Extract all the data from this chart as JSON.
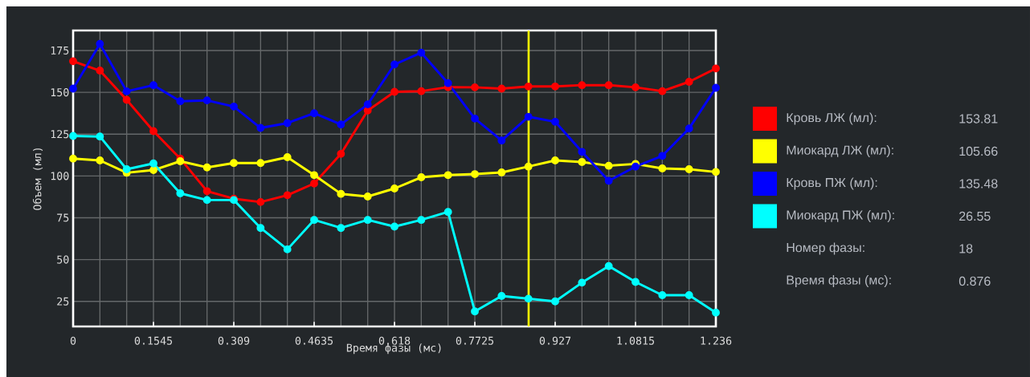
{
  "chart_data": {
    "type": "line",
    "xlabel": "Время фазы (мс)",
    "ylabel": "Объем (мл)",
    "x": [
      0,
      0.0515,
      0.103,
      0.1545,
      0.206,
      0.2575,
      0.309,
      0.3605,
      0.412,
      0.4635,
      0.515,
      0.5665,
      0.618,
      0.6695,
      0.721,
      0.7725,
      0.824,
      0.8755,
      0.927,
      0.9785,
      1.03,
      1.0815,
      1.133,
      1.1845,
      1.236
    ],
    "series": [
      {
        "name": "Кровь ЛЖ (мл):",
        "color": "#ff0000",
        "values": [
          168.6,
          163.0,
          145.5,
          126.8,
          110.4,
          90.9,
          86.4,
          84.4,
          88.5,
          95.5,
          113.2,
          139.1,
          150.3,
          150.7,
          153.1,
          153.0,
          152.2,
          153.5,
          153.5,
          154.3,
          154.3,
          153.0,
          150.7,
          156.3,
          164.3
        ]
      },
      {
        "name": "Миокард ЛЖ (мл):",
        "color": "#ffff00",
        "values": [
          110.4,
          109.3,
          101.9,
          103.5,
          108.8,
          105.1,
          107.7,
          107.7,
          111.2,
          100.5,
          89.3,
          87.7,
          92.5,
          99.2,
          100.5,
          101.1,
          102.1,
          105.6,
          109.3,
          108.3,
          106.1,
          107.2,
          104.5,
          104.0,
          102.4
        ]
      },
      {
        "name": "Кровь ПЖ (мл):",
        "color": "#0000ff",
        "values": [
          152.2,
          179.0,
          150.6,
          154.3,
          144.7,
          145.2,
          141.5,
          128.7,
          131.6,
          137.5,
          130.8,
          142.8,
          166.7,
          173.7,
          155.5,
          134.3,
          121.2,
          135.4,
          132.4,
          114.4,
          97.1,
          105.6,
          112.0,
          128.4,
          152.7
        ]
      },
      {
        "name": "Миокард ПЖ (мл):",
        "color": "#00ffff",
        "values": [
          123.9,
          123.6,
          104.0,
          107.5,
          89.6,
          85.6,
          85.6,
          68.9,
          56.1,
          73.7,
          68.9,
          73.7,
          69.7,
          73.7,
          78.5,
          19.0,
          28.2,
          26.6,
          25.0,
          36.2,
          46.1,
          36.6,
          28.7,
          28.7,
          18.3
        ]
      }
    ],
    "xlim": [
      0,
      1.236
    ],
    "xticks": [
      0,
      0.1545,
      0.309,
      0.4635,
      0.618,
      0.7725,
      0.927,
      1.0815,
      1.236
    ],
    "ylim": [
      10,
      187
    ],
    "yticks": [
      25,
      50,
      75,
      100,
      125,
      150,
      175
    ],
    "ref_lines": [
      {
        "axis": "x",
        "value": 0.876,
        "color": "#ffff00"
      }
    ],
    "annotations": [
      "153.81",
      "105.66",
      "135.48",
      "26.55",
      "Номер фазы:",
      "18",
      "Время фазы (мс):",
      "0.876"
    ],
    "grid": true,
    "legend": "right",
    "marker": "circle",
    "line_style": "solid"
  }
}
